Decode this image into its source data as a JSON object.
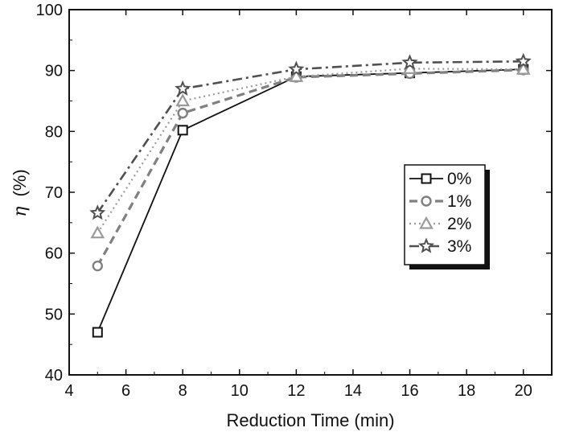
{
  "chart_data": {
    "type": "line",
    "title": "",
    "xlabel": "Reduction Time (min)",
    "ylabel_symbol": "η",
    "ylabel_unit": "(%)",
    "xlim": [
      4,
      21
    ],
    "ylim": [
      40,
      100
    ],
    "xticks": [
      4,
      6,
      8,
      10,
      12,
      14,
      16,
      18,
      20
    ],
    "yticks": [
      40,
      50,
      60,
      70,
      80,
      90,
      100
    ],
    "grid": false,
    "legend_position": "center-right",
    "x": [
      5,
      8,
      12,
      16,
      20
    ],
    "series": [
      {
        "name": "0%",
        "marker": "square",
        "dash": "solid",
        "color": "#111111",
        "values": [
          47.0,
          80.2,
          89.0,
          89.6,
          90.2
        ]
      },
      {
        "name": "1%",
        "marker": "circle",
        "dash": "dash",
        "color": "#808080",
        "values": [
          57.9,
          83.0,
          88.9,
          89.5,
          90.1
        ]
      },
      {
        "name": "2%",
        "marker": "triangle",
        "dash": "dot",
        "color": "#9a9a9a",
        "values": [
          63.3,
          85.0,
          89.0,
          90.3,
          90.2
        ]
      },
      {
        "name": "3%",
        "marker": "star",
        "dash": "dashdot",
        "color": "#505050",
        "values": [
          66.6,
          87.0,
          90.2,
          91.3,
          91.5
        ]
      }
    ]
  }
}
